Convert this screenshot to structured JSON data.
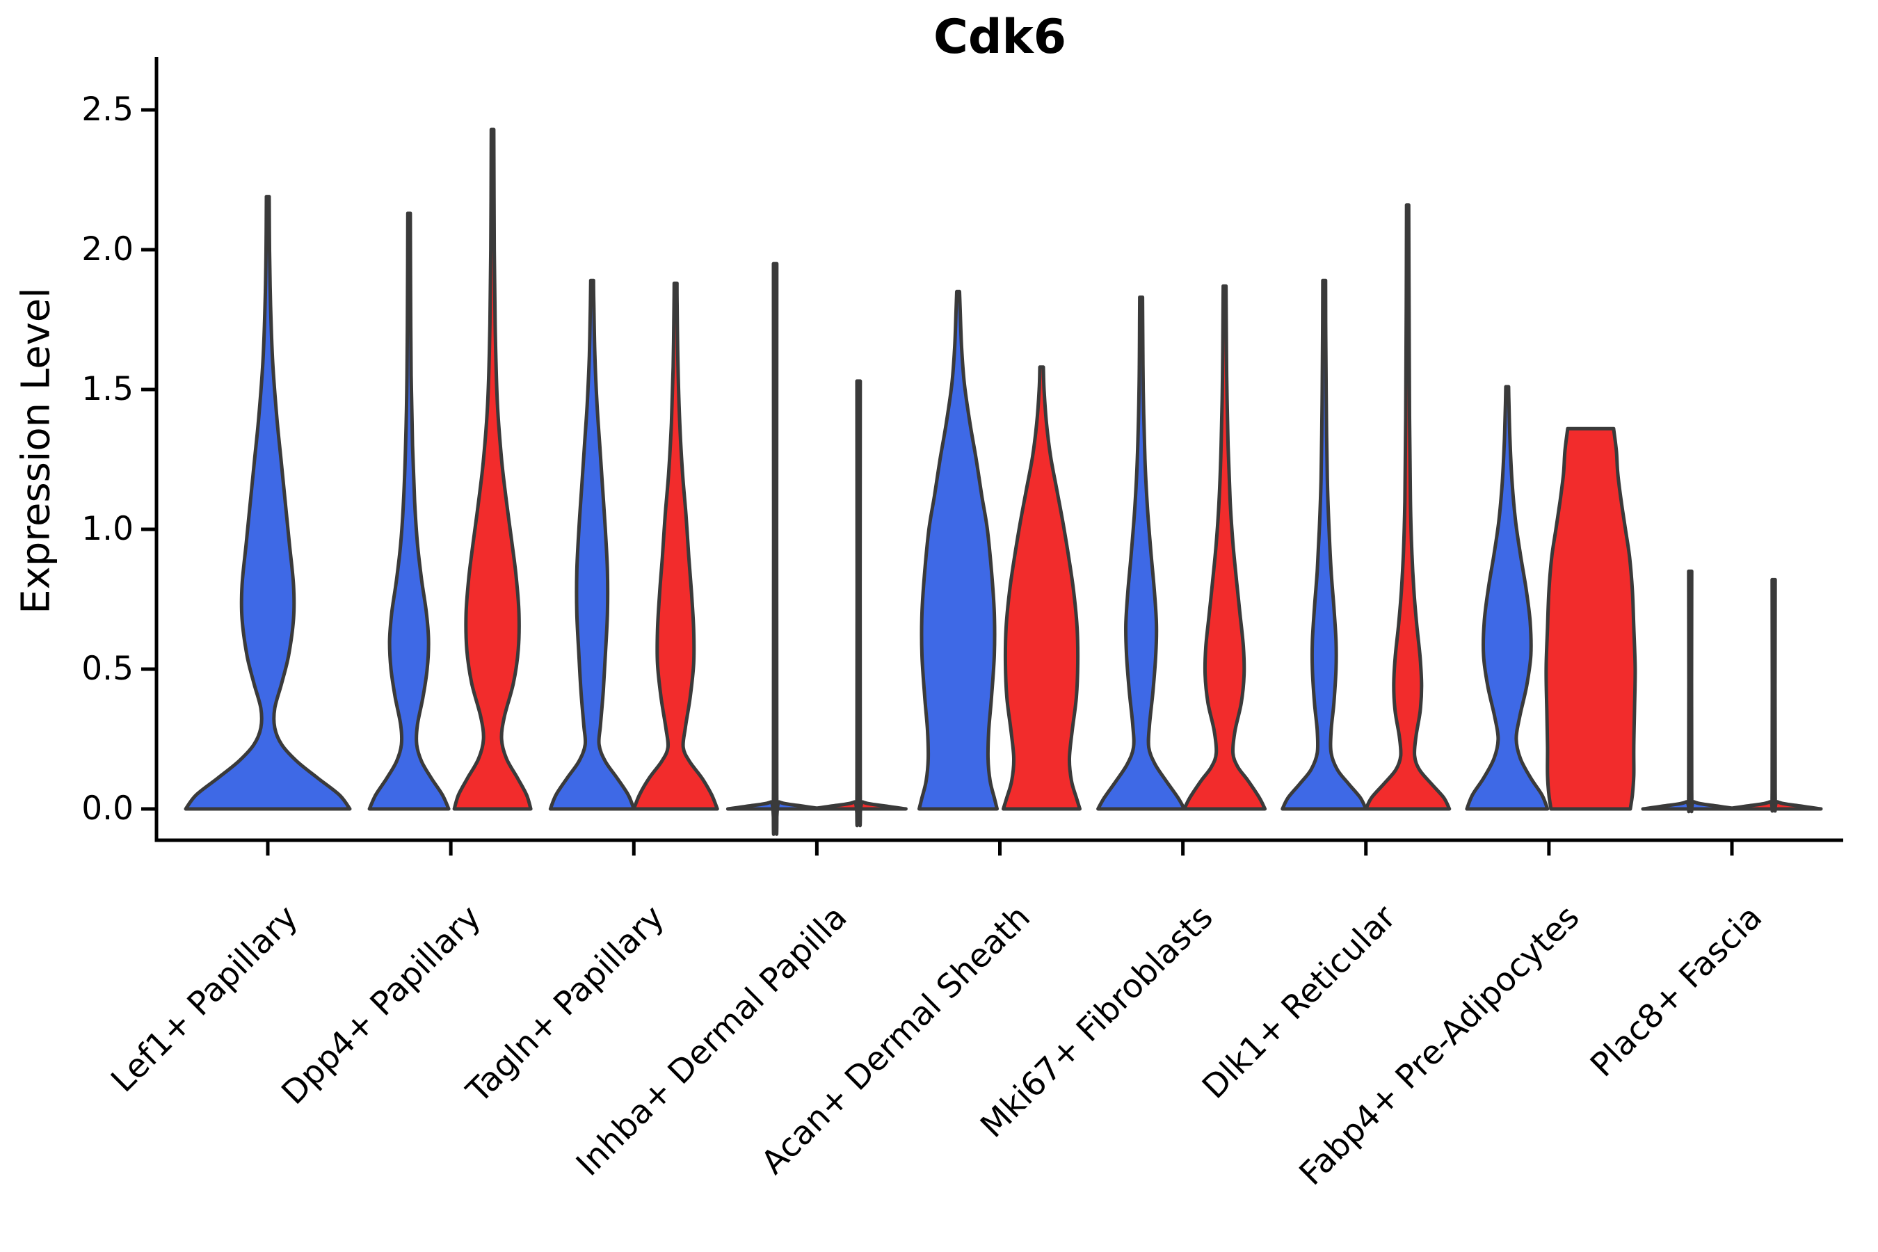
{
  "figure": {
    "title": "Cdk6"
  },
  "chart_data": {
    "type": "violin",
    "title": "Cdk6",
    "xlabel": "",
    "ylabel": "Expression Level",
    "ylim": [
      0,
      2.5
    ],
    "grid": false,
    "legend": "none",
    "y_ticks": [
      0.0,
      0.5,
      1.0,
      1.5,
      2.0,
      2.5
    ],
    "y_tick_labels": [
      "0.0",
      "0.5",
      "1.0",
      "1.5",
      "2.0",
      "2.5"
    ],
    "categories": [
      "Lef1+ Papillary",
      "Dpp4+ Papillary",
      "Tagln+ Papillary",
      "Inhba+ Dermal Papilla",
      "Acan+ Dermal Sheath",
      "Mki67+ Fibroblasts",
      "Dlk1+ Reticular",
      "Fabp4+ Pre-Adipocytes",
      "Plac8+ Fascia"
    ],
    "series": [
      {
        "key": "blue",
        "color": "#3E69E6"
      },
      {
        "key": "red",
        "color": "#F22C2C"
      }
    ],
    "outline_color": "#3A3A3A",
    "violins": [
      {
        "category_index": 0,
        "category": "Lef1+ Papillary",
        "series": "blue",
        "side": "center",
        "peak": 2.19,
        "profile": [
          [
            0,
            118
          ],
          [
            0.05,
            103
          ],
          [
            0.11,
            72
          ],
          [
            0.17,
            42
          ],
          [
            0.23,
            20
          ],
          [
            0.29,
            10
          ],
          [
            0.36,
            10
          ],
          [
            0.45,
            20
          ],
          [
            0.55,
            30
          ],
          [
            0.68,
            37
          ],
          [
            0.8,
            37
          ],
          [
            0.95,
            31
          ],
          [
            1.1,
            25
          ],
          [
            1.25,
            19
          ],
          [
            1.4,
            13
          ],
          [
            1.6,
            7
          ],
          [
            1.8,
            4
          ],
          [
            2.0,
            2.5
          ],
          [
            2.19,
            2
          ]
        ]
      },
      {
        "category_index": 1,
        "category": "Dpp4+ Papillary",
        "series": "blue",
        "side": "left",
        "peak": 2.13,
        "profile": [
          [
            0,
            57
          ],
          [
            0.05,
            48
          ],
          [
            0.11,
            32
          ],
          [
            0.17,
            18
          ],
          [
            0.23,
            11
          ],
          [
            0.3,
            12
          ],
          [
            0.4,
            20
          ],
          [
            0.5,
            26
          ],
          [
            0.6,
            28
          ],
          [
            0.7,
            25
          ],
          [
            0.82,
            18
          ],
          [
            0.95,
            12
          ],
          [
            1.1,
            8
          ],
          [
            1.3,
            5
          ],
          [
            1.55,
            3
          ],
          [
            1.85,
            2.2
          ],
          [
            2.13,
            1.8
          ]
        ]
      },
      {
        "category_index": 1,
        "category": "Dpp4+ Papillary",
        "series": "red",
        "side": "right",
        "peak": 2.43,
        "profile": [
          [
            0,
            55
          ],
          [
            0.05,
            49
          ],
          [
            0.11,
            36
          ],
          [
            0.18,
            20
          ],
          [
            0.25,
            13
          ],
          [
            0.33,
            17
          ],
          [
            0.45,
            30
          ],
          [
            0.57,
            37
          ],
          [
            0.7,
            38
          ],
          [
            0.83,
            34
          ],
          [
            0.95,
            28
          ],
          [
            1.1,
            20
          ],
          [
            1.25,
            13
          ],
          [
            1.45,
            7
          ],
          [
            1.7,
            4
          ],
          [
            2.0,
            2.5
          ],
          [
            2.43,
            1.8
          ]
        ]
      },
      {
        "category_index": 2,
        "category": "Tagln+ Papillary",
        "series": "blue",
        "side": "left",
        "peak": 1.89,
        "profile": [
          [
            0,
            60
          ],
          [
            0.05,
            52
          ],
          [
            0.11,
            36
          ],
          [
            0.17,
            19
          ],
          [
            0.23,
            10
          ],
          [
            0.3,
            12
          ],
          [
            0.42,
            16
          ],
          [
            0.55,
            19
          ],
          [
            0.7,
            22
          ],
          [
            0.85,
            22
          ],
          [
            1.0,
            19
          ],
          [
            1.15,
            15
          ],
          [
            1.3,
            11
          ],
          [
            1.45,
            7
          ],
          [
            1.62,
            4
          ],
          [
            1.8,
            2.5
          ],
          [
            1.89,
            2
          ]
        ]
      },
      {
        "category_index": 2,
        "category": "Tagln+ Papillary",
        "series": "red",
        "side": "right",
        "peak": 1.88,
        "profile": [
          [
            0,
            60
          ],
          [
            0.05,
            52
          ],
          [
            0.11,
            38
          ],
          [
            0.17,
            20
          ],
          [
            0.22,
            11
          ],
          [
            0.29,
            14
          ],
          [
            0.4,
            21
          ],
          [
            0.52,
            26
          ],
          [
            0.64,
            26
          ],
          [
            0.77,
            23
          ],
          [
            0.9,
            19
          ],
          [
            1.05,
            15
          ],
          [
            1.2,
            10
          ],
          [
            1.38,
            6
          ],
          [
            1.58,
            3.5
          ],
          [
            1.8,
            2.2
          ],
          [
            1.88,
            2
          ]
        ]
      },
      {
        "category_index": 3,
        "category": "Inhba+ Dermal Papilla",
        "series": "blue",
        "side": "left",
        "peak": 1.95,
        "profile": [
          [
            0,
            68
          ],
          [
            0.01,
            40
          ],
          [
            0.025,
            6
          ],
          [
            0.06,
            2.4
          ],
          [
            1.95,
            2.4
          ]
        ]
      },
      {
        "category_index": 3,
        "category": "Inhba+ Dermal Papilla",
        "series": "red",
        "side": "right",
        "peak": 1.53,
        "profile": [
          [
            0,
            68
          ],
          [
            0.01,
            40
          ],
          [
            0.025,
            6
          ],
          [
            0.06,
            2.4
          ],
          [
            1.53,
            2.4
          ]
        ]
      },
      {
        "category_index": 4,
        "category": "Acan+ Dermal Sheath",
        "series": "blue",
        "side": "left",
        "peak": 1.85,
        "profile": [
          [
            0,
            56
          ],
          [
            0.04,
            52
          ],
          [
            0.1,
            46
          ],
          [
            0.18,
            43
          ],
          [
            0.28,
            44
          ],
          [
            0.4,
            48
          ],
          [
            0.55,
            52
          ],
          [
            0.7,
            52
          ],
          [
            0.85,
            48
          ],
          [
            1.0,
            42
          ],
          [
            1.12,
            34
          ],
          [
            1.25,
            26
          ],
          [
            1.38,
            17
          ],
          [
            1.52,
            9
          ],
          [
            1.65,
            5
          ],
          [
            1.78,
            3
          ],
          [
            1.85,
            2
          ]
        ]
      },
      {
        "category_index": 4,
        "category": "Acan+ Dermal Sheath",
        "series": "red",
        "side": "right",
        "peak": 1.58,
        "profile": [
          [
            0,
            55
          ],
          [
            0.04,
            50
          ],
          [
            0.1,
            43
          ],
          [
            0.18,
            40
          ],
          [
            0.28,
            44
          ],
          [
            0.4,
            50
          ],
          [
            0.52,
            52
          ],
          [
            0.65,
            51
          ],
          [
            0.78,
            46
          ],
          [
            0.9,
            39
          ],
          [
            1.02,
            31
          ],
          [
            1.14,
            22
          ],
          [
            1.26,
            13
          ],
          [
            1.38,
            7
          ],
          [
            1.5,
            3.5
          ],
          [
            1.58,
            2.5
          ]
        ]
      },
      {
        "category_index": 5,
        "category": "Mki67+ Fibroblasts",
        "series": "blue",
        "side": "left",
        "peak": 1.83,
        "profile": [
          [
            0,
            62
          ],
          [
            0.04,
            53
          ],
          [
            0.1,
            36
          ],
          [
            0.16,
            20
          ],
          [
            0.22,
            11
          ],
          [
            0.3,
            12
          ],
          [
            0.42,
            17
          ],
          [
            0.55,
            21
          ],
          [
            0.66,
            22
          ],
          [
            0.78,
            19
          ],
          [
            0.92,
            14
          ],
          [
            1.08,
            9
          ],
          [
            1.25,
            5.5
          ],
          [
            1.5,
            3
          ],
          [
            1.75,
            2.2
          ],
          [
            1.83,
            2
          ]
        ]
      },
      {
        "category_index": 5,
        "category": "Mki67+ Fibroblasts",
        "series": "red",
        "side": "right",
        "peak": 1.87,
        "profile": [
          [
            0,
            58
          ],
          [
            0.04,
            50
          ],
          [
            0.1,
            34
          ],
          [
            0.15,
            19
          ],
          [
            0.2,
            12
          ],
          [
            0.28,
            15
          ],
          [
            0.38,
            24
          ],
          [
            0.48,
            28
          ],
          [
            0.58,
            27
          ],
          [
            0.7,
            22
          ],
          [
            0.82,
            17
          ],
          [
            0.95,
            12
          ],
          [
            1.1,
            8
          ],
          [
            1.3,
            5
          ],
          [
            1.55,
            3
          ],
          [
            1.8,
            2.2
          ],
          [
            1.87,
            2
          ]
        ]
      },
      {
        "category_index": 6,
        "category": "Dlk1+ Reticular",
        "series": "blue",
        "side": "left",
        "peak": 1.89,
        "profile": [
          [
            0,
            60
          ],
          [
            0.04,
            52
          ],
          [
            0.09,
            35
          ],
          [
            0.14,
            19
          ],
          [
            0.2,
            10
          ],
          [
            0.28,
            10
          ],
          [
            0.38,
            14
          ],
          [
            0.5,
            17
          ],
          [
            0.6,
            17
          ],
          [
            0.72,
            14
          ],
          [
            0.85,
            10
          ],
          [
            1.0,
            7
          ],
          [
            1.18,
            4.5
          ],
          [
            1.45,
            3
          ],
          [
            1.7,
            2.2
          ],
          [
            1.89,
            2
          ]
        ]
      },
      {
        "category_index": 6,
        "category": "Dlk1+ Reticular",
        "series": "red",
        "side": "right",
        "peak": 2.16,
        "profile": [
          [
            0,
            60
          ],
          [
            0.04,
            52
          ],
          [
            0.09,
            34
          ],
          [
            0.14,
            17
          ],
          [
            0.19,
            10
          ],
          [
            0.26,
            12
          ],
          [
            0.35,
            18
          ],
          [
            0.44,
            20
          ],
          [
            0.54,
            18
          ],
          [
            0.66,
            13
          ],
          [
            0.78,
            9
          ],
          [
            0.92,
            6
          ],
          [
            1.1,
            4
          ],
          [
            1.4,
            2.8
          ],
          [
            1.8,
            2
          ],
          [
            2.16,
            1.6
          ]
        ]
      },
      {
        "category_index": 7,
        "category": "Fabp4+ Pre-Adipocytes",
        "series": "blue",
        "side": "left",
        "peak": 1.51,
        "profile": [
          [
            0,
            58
          ],
          [
            0.05,
            50
          ],
          [
            0.11,
            34
          ],
          [
            0.18,
            19
          ],
          [
            0.25,
            13
          ],
          [
            0.33,
            18
          ],
          [
            0.44,
            28
          ],
          [
            0.55,
            34
          ],
          [
            0.67,
            33
          ],
          [
            0.79,
            27
          ],
          [
            0.91,
            19
          ],
          [
            1.03,
            12
          ],
          [
            1.17,
            7
          ],
          [
            1.32,
            4
          ],
          [
            1.45,
            2.5
          ],
          [
            1.51,
            2
          ]
        ]
      },
      {
        "category_index": 7,
        "category": "Fabp4+ Pre-Adipocytes",
        "series": "red",
        "side": "right",
        "peak": 1.36,
        "profile": [
          [
            0,
            57
          ],
          [
            0.05,
            60
          ],
          [
            0.12,
            62
          ],
          [
            0.22,
            62
          ],
          [
            0.35,
            63
          ],
          [
            0.5,
            64
          ],
          [
            0.65,
            62
          ],
          [
            0.78,
            60
          ],
          [
            0.9,
            56
          ],
          [
            1.0,
            50
          ],
          [
            1.1,
            44
          ],
          [
            1.2,
            39
          ],
          [
            1.28,
            37
          ],
          [
            1.36,
            33
          ]
        ]
      },
      {
        "category_index": 8,
        "category": "Plac8+ Fascia",
        "series": "blue",
        "side": "left",
        "peak": 0.85,
        "profile": [
          [
            0,
            68
          ],
          [
            0.01,
            40
          ],
          [
            0.025,
            6
          ],
          [
            0.06,
            2.2
          ],
          [
            0.85,
            2.2
          ]
        ]
      },
      {
        "category_index": 8,
        "category": "Plac8+ Fascia",
        "series": "red",
        "side": "right",
        "peak": 0.82,
        "profile": [
          [
            0,
            68
          ],
          [
            0.01,
            40
          ],
          [
            0.025,
            6
          ],
          [
            0.06,
            2.2
          ],
          [
            0.82,
            2.2
          ]
        ]
      }
    ]
  }
}
